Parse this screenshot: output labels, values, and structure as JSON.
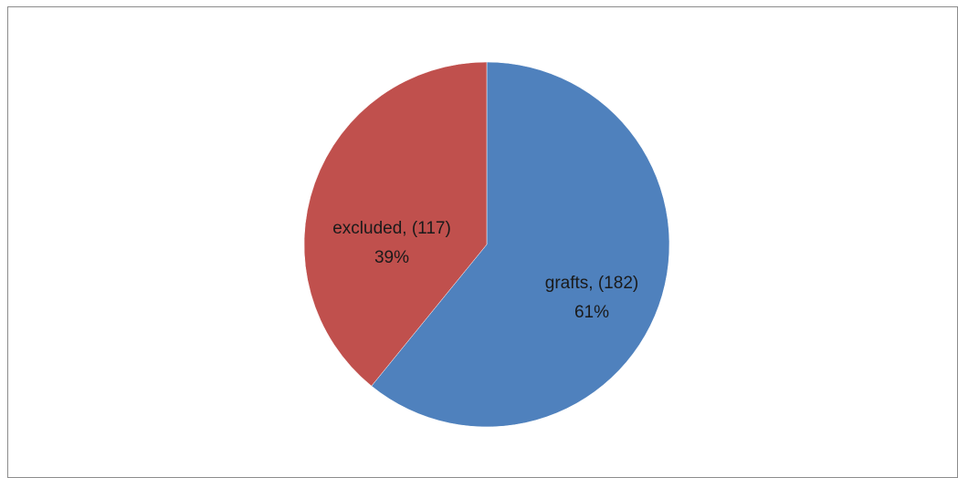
{
  "chart_data": {
    "type": "pie",
    "title": "",
    "slices": [
      {
        "name": "grafts",
        "value": 182,
        "percent_label": "61%",
        "label_line1": "grafts, (182)",
        "label_line2": "61%",
        "color": "#4F81BD"
      },
      {
        "name": "excluded",
        "value": 117,
        "percent_label": "39%",
        "label_line1": "excluded, (117)",
        "label_line2": "39%",
        "color": "#C0504D"
      }
    ],
    "start_angle_deg": 0,
    "direction": "clockwise",
    "legend": "none",
    "data_labels": "inside"
  }
}
